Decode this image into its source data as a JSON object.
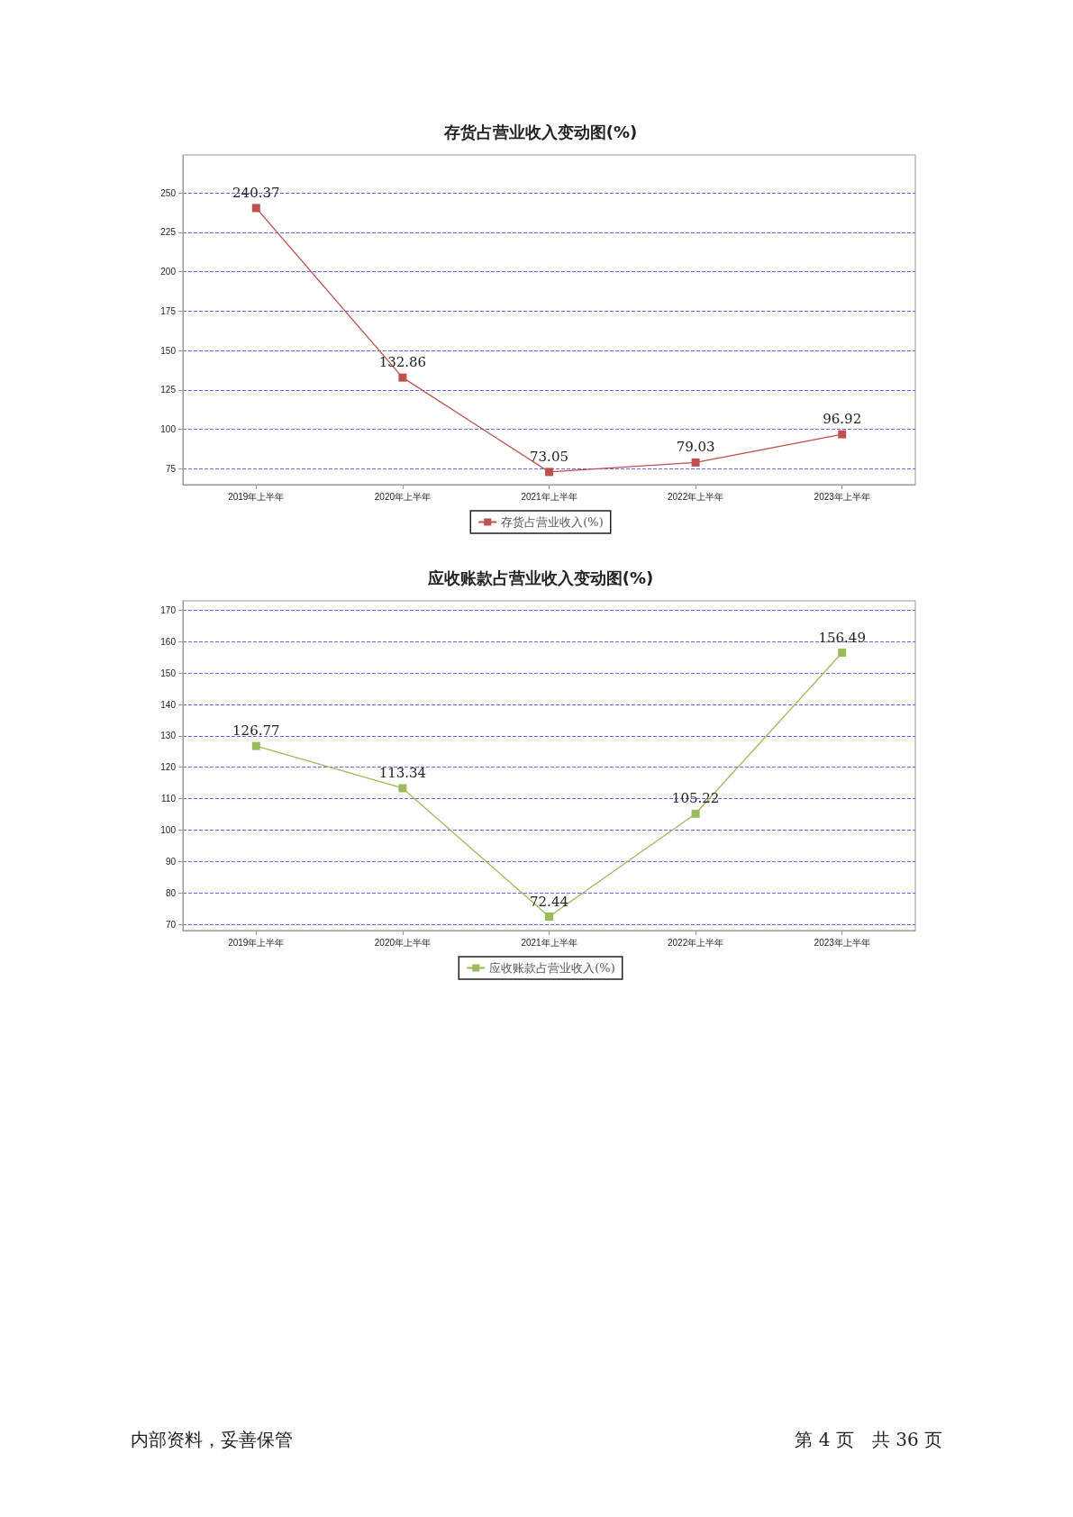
{
  "chart_data": [
    {
      "type": "line",
      "title": "存货占营业收入变动图(%)",
      "categories": [
        "2019年上半年",
        "2020年上半年",
        "2021年上半年",
        "2022年上半年",
        "2023年上半年"
      ],
      "series": [
        {
          "name": "存货占营业收入(%)",
          "color": "#c0504d",
          "values": [
            240.37,
            132.86,
            73.05,
            79.03,
            96.92
          ]
        }
      ],
      "ylim": [
        65,
        274
      ],
      "yticks": [
        75,
        100,
        125,
        150,
        175,
        200,
        225,
        250
      ],
      "grid": "y",
      "legend": "bottom",
      "marker": "square",
      "data_labels": true
    },
    {
      "type": "line",
      "title": "应收账款占营业收入变动图(%)",
      "categories": [
        "2019年上半年",
        "2020年上半年",
        "2021年上半年",
        "2022年上半年",
        "2023年上半年"
      ],
      "series": [
        {
          "name": "应收账款占营业收入(%)",
          "color": "#9bbb59",
          "values": [
            126.77,
            113.34,
            72.44,
            105.22,
            156.49
          ]
        }
      ],
      "ylim": [
        68,
        173
      ],
      "yticks": [
        70,
        80,
        90,
        100,
        110,
        120,
        130,
        140,
        150,
        160,
        170
      ],
      "grid": "y",
      "legend": "bottom",
      "marker": "square",
      "data_labels": true,
      "annotations": [
        "内部资料，妥善保管",
        "第 4 页　共 36 页"
      ]
    }
  ]
}
